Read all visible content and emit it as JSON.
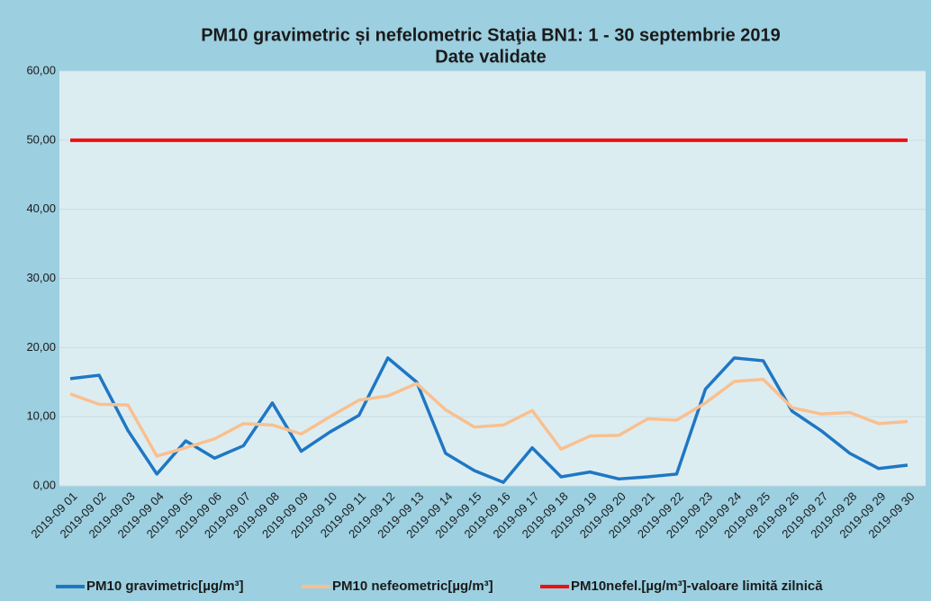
{
  "chart_data": {
    "type": "line",
    "title": "PM10 gravimetric și nefelometric Staţia BN1: 1 - 30 septembrie 2019",
    "subtitle": "Date validate",
    "categories": [
      "2019-09 01",
      "2019-09 02",
      "2019-09 03",
      "2019-09 04",
      "2019-09 05",
      "2019-09 06",
      "2019-09 07",
      "2019-09 08",
      "2019-09 09",
      "2019-09 10",
      "2019-09 11",
      "2019-09 12",
      "2019-09 13",
      "2019-09 14",
      "2019-09 15",
      "2019-09 16",
      "2019-09 17",
      "2019-09 18",
      "2019-09 19",
      "2019-09 20",
      "2019-09 21",
      "2019-09 22",
      "2019-09 23",
      "2019-09 24",
      "2019-09 25",
      "2019-09 26",
      "2019-09 27",
      "2019-09 28",
      "2019-09 29",
      "2019-09 30"
    ],
    "series": [
      {
        "name": "PM10 gravimetric[µg/m³]",
        "color": "#1f77c4",
        "values": [
          15.5,
          16,
          8,
          1.7,
          6.5,
          4,
          5.8,
          12,
          5,
          7.8,
          10.2,
          18.5,
          15,
          4.7,
          2.2,
          0.5,
          5.5,
          1.3,
          2,
          1,
          1.3,
          1.7,
          14,
          18.5,
          18.1,
          10.8,
          8,
          4.7,
          2.5,
          3
        ]
      },
      {
        "name": "PM10 nefeometric[µg/m³]",
        "color": "#f9c08f",
        "values": [
          13.3,
          11.8,
          11.7,
          4.3,
          5.5,
          6.8,
          9,
          8.8,
          7.5,
          10,
          12.4,
          13,
          14.8,
          11,
          8.5,
          8.8,
          10.9,
          5.3,
          7.2,
          7.3,
          9.7,
          9.5,
          12,
          15.1,
          15.4,
          11.3,
          10.4,
          10.6,
          9,
          9.3
        ]
      },
      {
        "name": "PM10nefel.[µg/m³]-valoare limită zilnică",
        "color": "#ee1111",
        "values": [
          50,
          50,
          50,
          50,
          50,
          50,
          50,
          50,
          50,
          50,
          50,
          50,
          50,
          50,
          50,
          50,
          50,
          50,
          50,
          50,
          50,
          50,
          50,
          50,
          50,
          50,
          50,
          50,
          50,
          50
        ]
      }
    ],
    "ylim": [
      0,
      60
    ],
    "yticks": [
      {
        "value": 0,
        "label": "0,00"
      },
      {
        "value": 10,
        "label": "10,00"
      },
      {
        "value": 20,
        "label": "20,00"
      },
      {
        "value": 30,
        "label": "30,00"
      },
      {
        "value": 40,
        "label": "40,00"
      },
      {
        "value": 50,
        "label": "50,00"
      },
      {
        "value": 60,
        "label": "60,00"
      }
    ],
    "grid": true,
    "legend": "bottom"
  }
}
